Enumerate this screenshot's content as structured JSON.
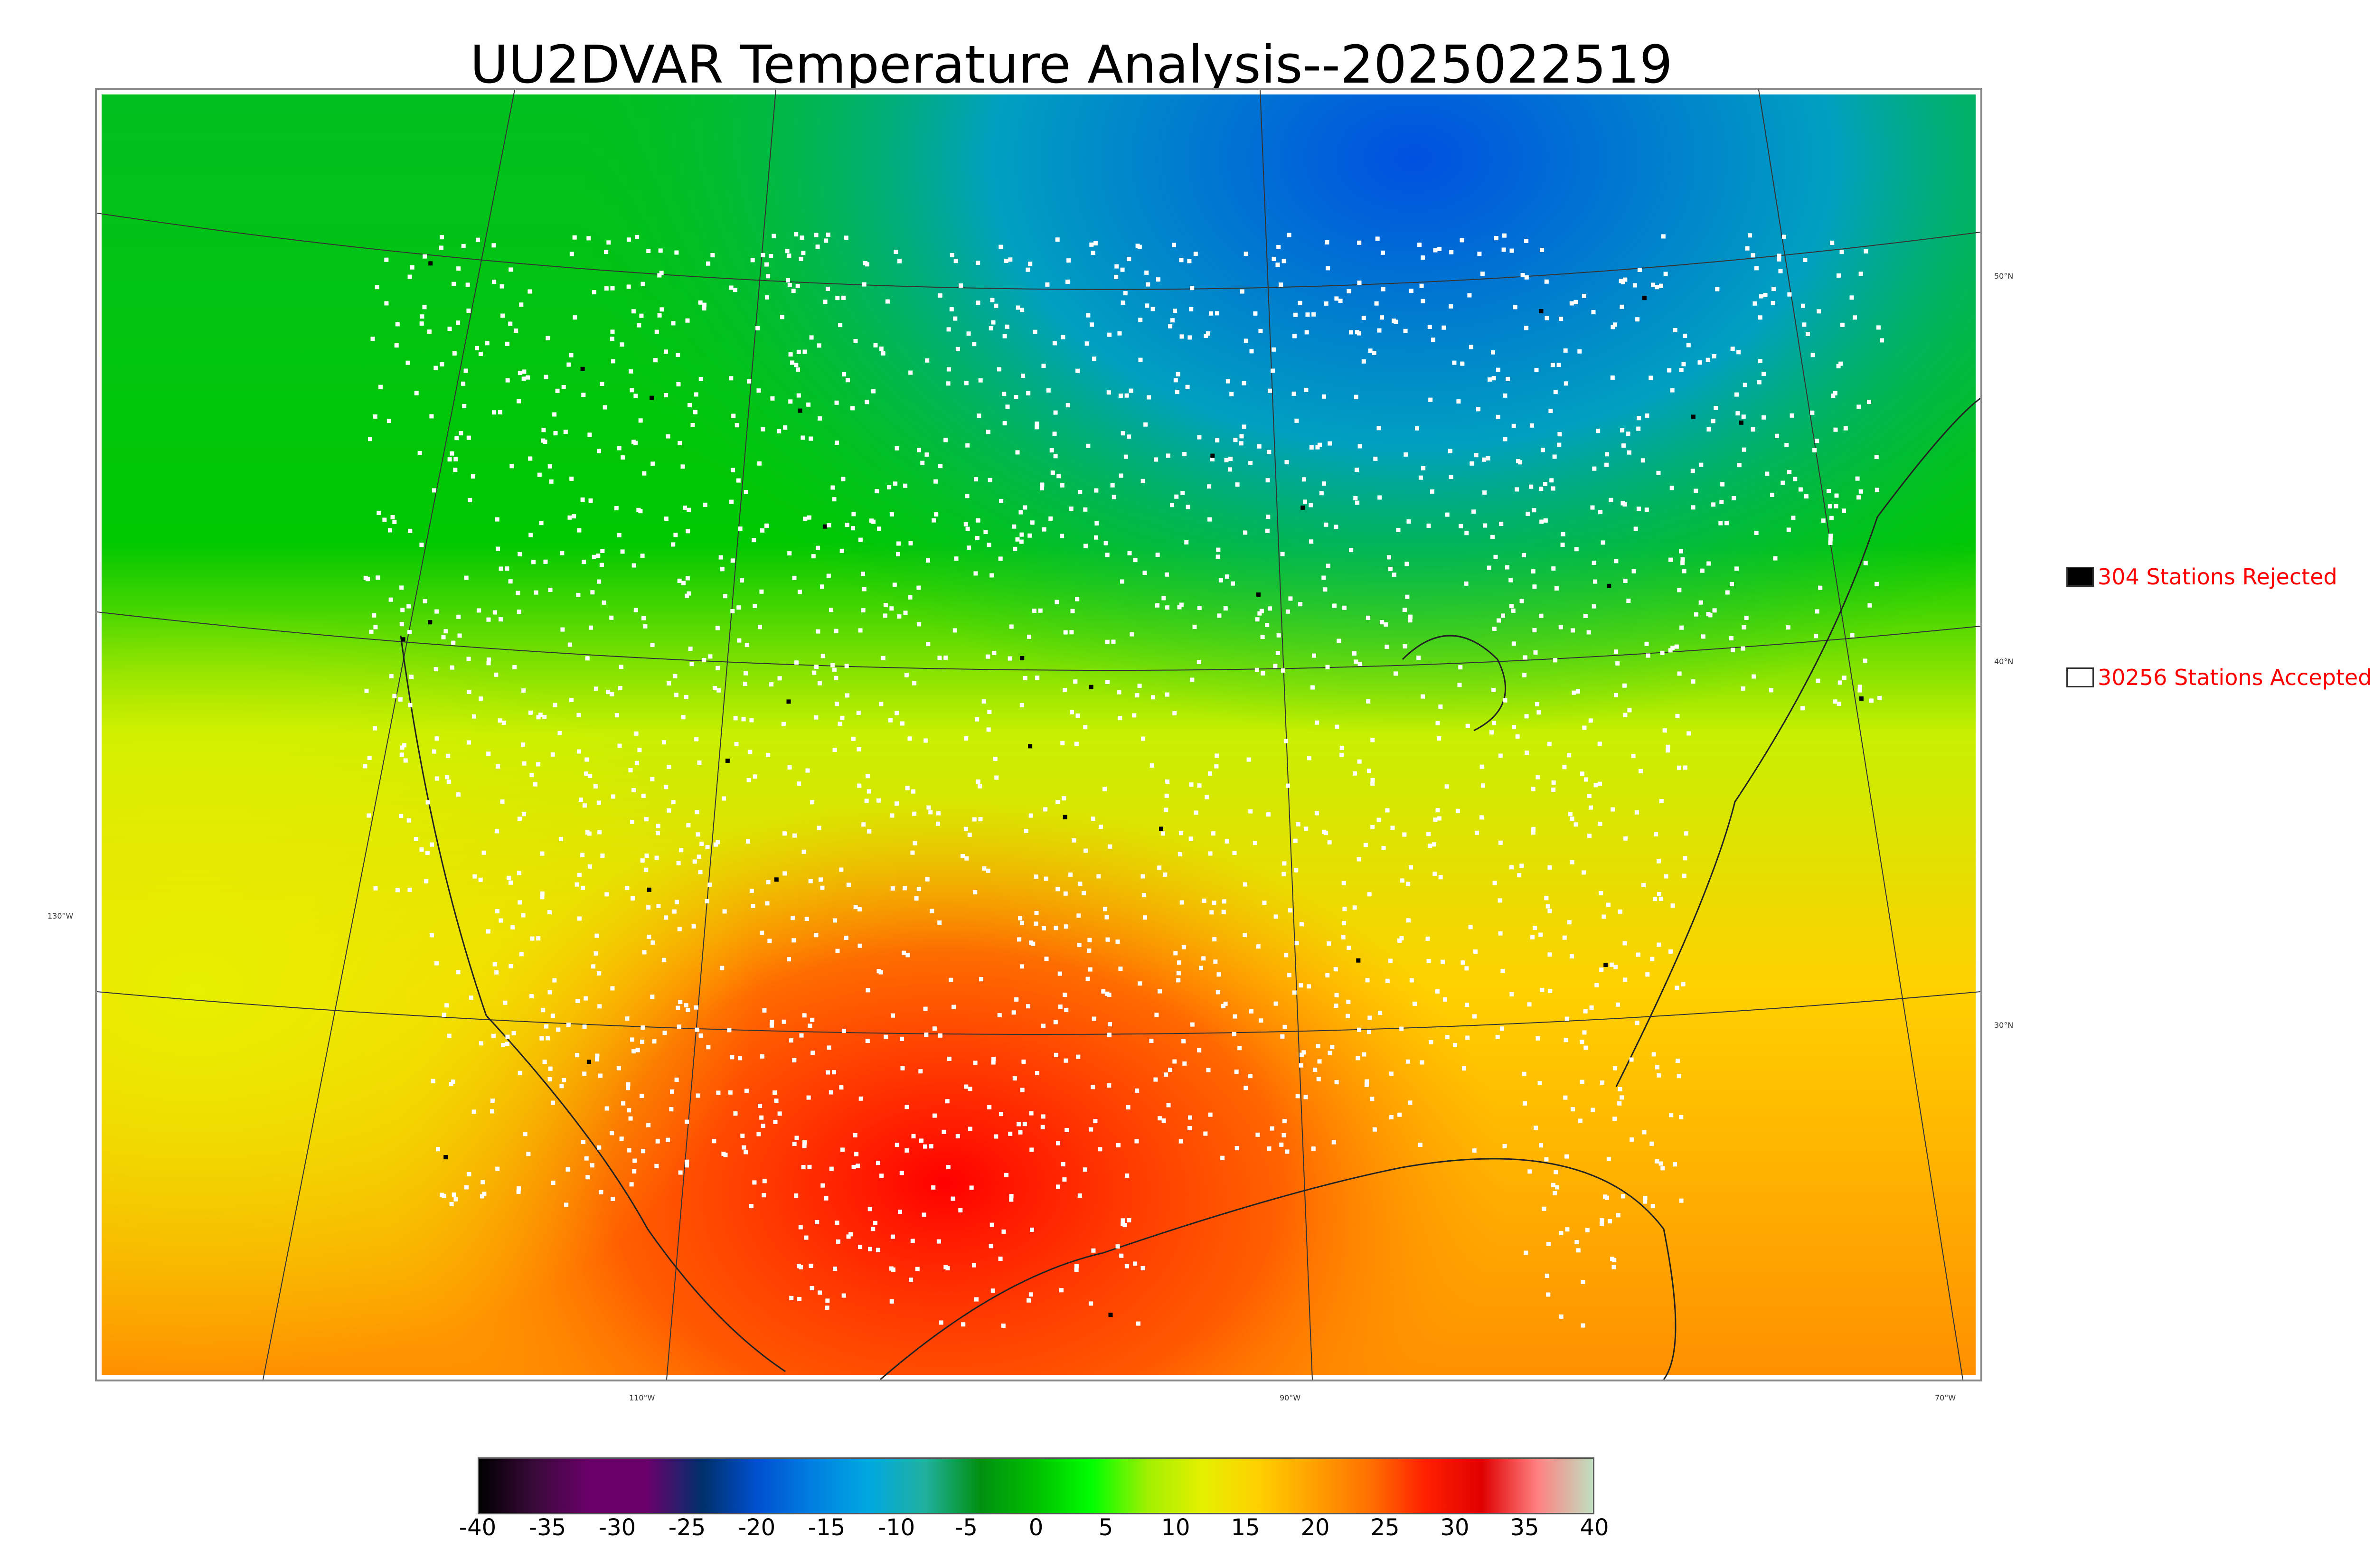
{
  "title": "UU2DVAR Temperature Analysis--2025022519",
  "legend": {
    "rejected": {
      "label": "304 Stations Rejected",
      "swatch_color": "#000000",
      "count": 304
    },
    "accepted": {
      "label": "30256 Stations Accepted",
      "swatch_color": "#ffffff",
      "count": 30256
    }
  },
  "latitude_labels": [
    "50°N",
    "40°N",
    "30°N"
  ],
  "longitude_labels": [
    "130°W",
    "110°W",
    "90°W",
    "70°W"
  ],
  "colorbar": {
    "ticks": [
      "-40",
      "-35",
      "-30",
      "-25",
      "-20",
      "-15",
      "-10",
      "-5",
      "0",
      "5",
      "10",
      "15",
      "20",
      "25",
      "30",
      "35",
      "40"
    ],
    "colors": [
      "#000000",
      "#3a0a3a",
      "#6b006b",
      "#6b006b",
      "#00306b",
      "#0050d0",
      "#0080e0",
      "#00a8e0",
      "#20b0a0",
      "#009010",
      "#00c000",
      "#00ff00",
      "#a0f000",
      "#e6f000",
      "#ffd000",
      "#ffa000",
      "#ff7000",
      "#ff2000",
      "#e00000",
      "#ff8080",
      "#c0e0c0"
    ]
  }
}
